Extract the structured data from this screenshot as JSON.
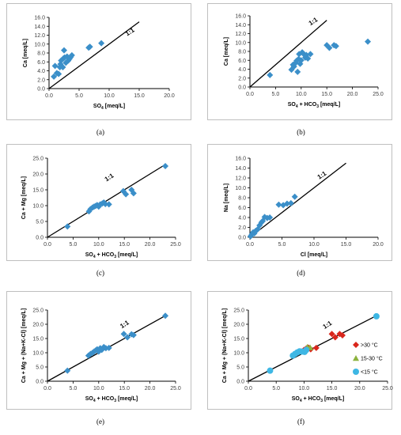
{
  "chart_data": [
    {
      "id": "a",
      "caption": "(a)",
      "type": "scatter",
      "xlabel": "SO4 [meq/L]",
      "xlabel_main": "SO",
      "xlabel_sub": "4",
      "xlabel_tail": " [meq/L]",
      "ylabel": "Ca [meq/L]",
      "xlim": [
        0,
        20
      ],
      "ylim": [
        0,
        16
      ],
      "xstep": 5,
      "ystep": 2,
      "decimals": 1,
      "ref_label": "1:1",
      "ref_line": [
        [
          0,
          0
        ],
        [
          15,
          15
        ]
      ],
      "ref_label_at": [
        13,
        11.8
      ],
      "color": "#3B8FC9",
      "marker": "diamond",
      "points": [
        [
          0.8,
          2.7
        ],
        [
          1.0,
          5.1
        ],
        [
          1.3,
          3.5
        ],
        [
          1.6,
          3.3
        ],
        [
          1.8,
          4.8
        ],
        [
          1.9,
          5.5
        ],
        [
          2.0,
          6.3
        ],
        [
          2.3,
          4.8
        ],
        [
          2.4,
          6.8
        ],
        [
          2.5,
          8.6
        ],
        [
          2.6,
          7.0
        ],
        [
          2.8,
          5.8
        ],
        [
          3.0,
          7.2
        ],
        [
          3.2,
          6.3
        ],
        [
          3.4,
          6.7
        ],
        [
          3.6,
          7.1
        ],
        [
          3.8,
          7.5
        ],
        [
          6.6,
          9.2
        ],
        [
          6.8,
          9.4
        ],
        [
          8.7,
          10.2
        ]
      ]
    },
    {
      "id": "b",
      "caption": "(b)",
      "type": "scatter",
      "xlabel": "SO4 + HCO3 [meq/L]",
      "xlabel_main": "SO",
      "xlabel_sub": "4",
      "xlabel_tail": " + HCO",
      "xlabel_sub2": "3",
      "xlabel_tail2": " [meq/L]",
      "ylabel": "Ca [meq/L]",
      "xlim": [
        0,
        25
      ],
      "ylim": [
        0,
        16
      ],
      "xstep": 5,
      "ystep": 2,
      "decimals": 1,
      "ref_label": "1:1",
      "ref_line": [
        [
          0,
          0
        ],
        [
          15,
          15
        ]
      ],
      "ref_label_at": [
        11.8,
        13.8
      ],
      "color": "#3B8FC9",
      "marker": "diamond",
      "points": [
        [
          3.9,
          2.7
        ],
        [
          8.1,
          3.9
        ],
        [
          8.4,
          5.0
        ],
        [
          8.6,
          4.6
        ],
        [
          8.9,
          5.4
        ],
        [
          9.1,
          5.9
        ],
        [
          9.3,
          3.4
        ],
        [
          9.5,
          6.3
        ],
        [
          9.6,
          7.4
        ],
        [
          9.8,
          5.2
        ],
        [
          10.0,
          6.0
        ],
        [
          10.2,
          7.8
        ],
        [
          10.5,
          7.4
        ],
        [
          10.8,
          6.6
        ],
        [
          11.0,
          7.2
        ],
        [
          11.3,
          6.4
        ],
        [
          11.8,
          7.4
        ],
        [
          15.0,
          9.4
        ],
        [
          15.5,
          8.8
        ],
        [
          16.4,
          9.4
        ],
        [
          16.8,
          9.2
        ],
        [
          23.0,
          10.2
        ]
      ]
    },
    {
      "id": "c",
      "caption": "(c)",
      "type": "scatter",
      "xlabel": "SO4 + HCO3 [meq/L]",
      "xlabel_main": "SO",
      "xlabel_sub": "4",
      "xlabel_tail": " + HCO",
      "xlabel_sub2": "3",
      "xlabel_tail2": " [meq/L]",
      "ylabel": "Ca + Mg [meq/L]",
      "xlim": [
        0,
        25
      ],
      "ylim": [
        0,
        25
      ],
      "xstep": 5,
      "ystep": 5,
      "decimals": 1,
      "ref_label": "1:1",
      "ref_line": [
        [
          0,
          0
        ],
        [
          23,
          23
        ]
      ],
      "ref_label_at": [
        11.5,
        17.6
      ],
      "color": "#3B8FC9",
      "marker": "diamond",
      "points": [
        [
          3.9,
          3.4
        ],
        [
          8.1,
          8.2
        ],
        [
          8.4,
          8.9
        ],
        [
          8.8,
          9.4
        ],
        [
          9.1,
          9.7
        ],
        [
          9.4,
          9.9
        ],
        [
          9.7,
          10.2
        ],
        [
          10.0,
          9.7
        ],
        [
          10.3,
          10.4
        ],
        [
          10.7,
          10.7
        ],
        [
          11.0,
          11.0
        ],
        [
          11.3,
          10.5
        ],
        [
          12.0,
          10.4
        ],
        [
          14.8,
          14.6
        ],
        [
          15.3,
          13.6
        ],
        [
          16.4,
          15.0
        ],
        [
          16.8,
          13.9
        ],
        [
          23.0,
          22.5
        ]
      ]
    },
    {
      "id": "d",
      "caption": "(d)",
      "type": "scatter",
      "xlabel": "Cl [meq/L]",
      "xlabel_main": "Cl [meq/L]",
      "ylabel": "Na [meq/L]",
      "xlim": [
        0,
        20
      ],
      "ylim": [
        0,
        16
      ],
      "xstep": 5,
      "ystep": 2,
      "decimals": 1,
      "ref_label": "1:1",
      "ref_line": [
        [
          0,
          0
        ],
        [
          15,
          15
        ]
      ],
      "ref_label_at": [
        10.8,
        11.7
      ],
      "color": "#3B8FC9",
      "marker": "diamond",
      "points": [
        [
          0.1,
          0.2
        ],
        [
          0.3,
          0.6
        ],
        [
          0.5,
          1.0
        ],
        [
          0.7,
          0.8
        ],
        [
          0.9,
          1.3
        ],
        [
          1.2,
          1.6
        ],
        [
          1.5,
          2.4
        ],
        [
          1.8,
          3.0
        ],
        [
          2.0,
          3.3
        ],
        [
          2.3,
          4.1
        ],
        [
          2.7,
          3.9
        ],
        [
          3.1,
          4.0
        ],
        [
          4.5,
          6.6
        ],
        [
          5.2,
          6.5
        ],
        [
          5.8,
          6.8
        ],
        [
          6.4,
          6.9
        ],
        [
          7.0,
          8.2
        ]
      ]
    },
    {
      "id": "e",
      "caption": "(e)",
      "type": "scatter",
      "xlabel": "SO4 + HCO3 [meq/L]",
      "xlabel_main": "SO",
      "xlabel_sub": "4",
      "xlabel_tail": " + HCO",
      "xlabel_sub2": "3",
      "xlabel_tail2": " [meq/L]",
      "ylabel": "Ca + Mg + (Na+K-Cl) [meq/L]",
      "xlim": [
        0,
        25
      ],
      "ylim": [
        0,
        25
      ],
      "xstep": 5,
      "ystep": 5,
      "decimals": 1,
      "ref_label": "1:1",
      "ref_line": [
        [
          0,
          0
        ],
        [
          23,
          23
        ]
      ],
      "ref_label_at": [
        14.5,
        18.5
      ],
      "color": "#3B8FC9",
      "marker": "diamond",
      "points": [
        [
          3.9,
          3.7
        ],
        [
          8.0,
          9.0
        ],
        [
          8.4,
          9.6
        ],
        [
          8.8,
          10.0
        ],
        [
          9.1,
          10.4
        ],
        [
          9.4,
          10.8
        ],
        [
          9.7,
          11.2
        ],
        [
          10.0,
          10.4
        ],
        [
          10.3,
          11.6
        ],
        [
          10.6,
          11.0
        ],
        [
          11.0,
          12.0
        ],
        [
          11.4,
          11.6
        ],
        [
          12.0,
          11.7
        ],
        [
          14.9,
          16.6
        ],
        [
          15.6,
          15.4
        ],
        [
          16.4,
          16.5
        ],
        [
          16.8,
          16.2
        ],
        [
          23.0,
          23.0
        ]
      ]
    },
    {
      "id": "f",
      "caption": "(f)",
      "type": "scatter",
      "xlabel": "SO4 + HCO3 [meq/L]",
      "xlabel_main": "SO",
      "xlabel_sub": "4",
      "xlabel_tail": " + HCO",
      "xlabel_sub2": "3",
      "xlabel_tail2": " [meq/L]",
      "ylabel": "Ca + Mg + (Na+K-Cl) [meq/L]",
      "xlim": [
        0,
        25
      ],
      "ylim": [
        0,
        25
      ],
      "xstep": 5,
      "ystep": 5,
      "decimals": 1,
      "ref_label": "1:1",
      "ref_line": [
        [
          0,
          0
        ],
        [
          23,
          23
        ]
      ],
      "ref_label_at": [
        13.7,
        18.3
      ],
      "legend": "right",
      "series": [
        {
          "name": ">30 °C",
          "color": "#D9261C",
          "marker": "diamond",
          "points": [
            [
              10.0,
              11.0
            ],
            [
              10.4,
              11.5
            ],
            [
              10.8,
              11.8
            ],
            [
              11.2,
              11.2
            ],
            [
              12.2,
              11.7
            ],
            [
              15.0,
              16.6
            ],
            [
              15.6,
              15.4
            ],
            [
              16.4,
              16.6
            ],
            [
              16.9,
              16.1
            ]
          ]
        },
        {
          "name": "15-30 °C",
          "color": "#8CB33E",
          "marker": "triangle",
          "points": [
            [
              10.6,
              12.0
            ],
            [
              11.1,
              11.8
            ]
          ]
        },
        {
          "name": "<15 °C",
          "color": "#3EB7E4",
          "marker": "circle",
          "points": [
            [
              3.9,
              3.7
            ],
            [
              8.0,
              9.0
            ],
            [
              8.4,
              9.6
            ],
            [
              8.8,
              10.1
            ],
            [
              9.2,
              10.5
            ],
            [
              9.6,
              10.4
            ],
            [
              10.1,
              10.3
            ],
            [
              10.4,
              11.0
            ],
            [
              23.0,
              22.8
            ]
          ]
        }
      ]
    }
  ]
}
